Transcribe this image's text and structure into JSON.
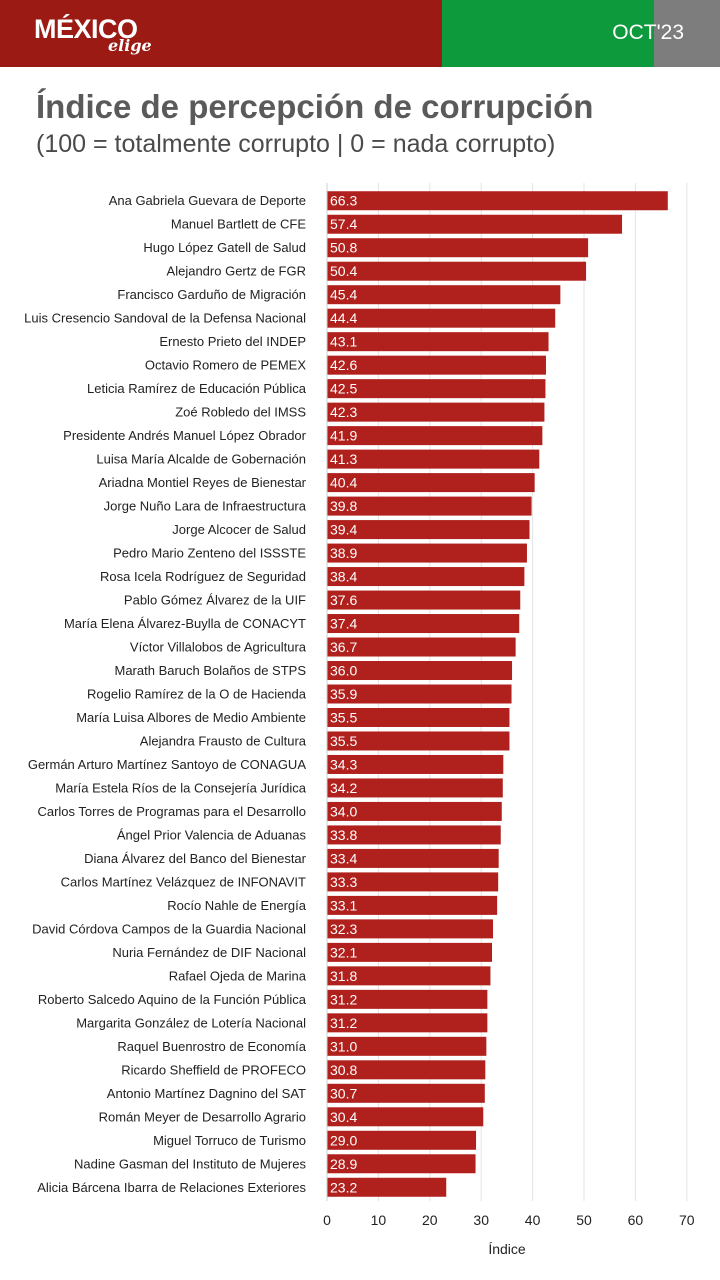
{
  "header": {
    "logo_main": "MÉXICO",
    "logo_sub": "elige",
    "date": "OCT'23",
    "colors": {
      "red": "#9b1a14",
      "green": "#0d9a3c",
      "gray": "#7d7d7d"
    }
  },
  "title": "Índice de percepción de corrupción",
  "subtitle": "(100 = totalmente corrupto | 0 = nada corrupto)",
  "chart_data": {
    "type": "bar",
    "orientation": "horizontal",
    "bar_color": "#b0201c",
    "xlabel": "Índice",
    "xlim": [
      0,
      70
    ],
    "xticks": [
      0,
      10,
      20,
      30,
      40,
      50,
      60,
      70
    ],
    "grid": true,
    "categories": [
      "Ana Gabriela Guevara de Deporte",
      "Manuel Bartlett de CFE",
      "Hugo López Gatell de Salud",
      "Alejandro Gertz de FGR",
      "Francisco Garduño de Migración",
      "Luis Cresencio Sandoval de la Defensa Nacional",
      "Ernesto Prieto del INDEP",
      "Octavio Romero de PEMEX",
      "Leticia Ramírez de Educación Pública",
      "Zoé Robledo del IMSS",
      "Presidente Andrés Manuel López Obrador",
      "Luisa María Alcalde de Gobernación",
      "Ariadna Montiel Reyes de Bienestar",
      "Jorge Nuño Lara de Infraestructura",
      "Jorge Alcocer de Salud",
      "Pedro Mario Zenteno del ISSSTE",
      "Rosa Icela Rodríguez de Seguridad",
      "Pablo Gómez Álvarez de la UIF",
      "María Elena Álvarez-Buylla de CONACYT",
      "Víctor Villalobos de Agricultura",
      "Marath Baruch Bolaños de STPS",
      "Rogelio Ramírez de la O de Hacienda",
      "María Luisa Albores de Medio Ambiente",
      "Alejandra Frausto de Cultura",
      "Germán Arturo Martínez Santoyo de CONAGUA",
      "María Estela Ríos de la Consejería Jurídica",
      "Carlos Torres de Programas para el Desarrollo",
      "Ángel Prior Valencia de Aduanas",
      "Diana Álvarez del Banco del Bienestar",
      "Carlos Martínez Velázquez de INFONAVIT",
      "Rocío Nahle de Energía",
      "David Córdova Campos de la Guardia Nacional",
      "Nuria Fernández de DIF Nacional",
      "Rafael Ojeda de Marina",
      "Roberto Salcedo Aquino de la Función Pública",
      "Margarita González de Lotería Nacional",
      "Raquel Buenrostro de Economía",
      "Ricardo Sheffield de PROFECO",
      "Antonio Martínez Dagnino del SAT",
      "Román Meyer de Desarrollo Agrario",
      "Miguel Torruco de Turismo",
      "Nadine Gasman del Instituto de Mujeres",
      "Alicia Bárcena Ibarra de Relaciones Exteriores"
    ],
    "values": [
      66.3,
      57.4,
      50.8,
      50.4,
      45.4,
      44.4,
      43.1,
      42.6,
      42.5,
      42.3,
      41.9,
      41.3,
      40.4,
      39.8,
      39.4,
      38.9,
      38.4,
      37.6,
      37.4,
      36.7,
      36.0,
      35.9,
      35.5,
      35.5,
      34.3,
      34.2,
      34.0,
      33.8,
      33.4,
      33.3,
      33.1,
      32.3,
      32.1,
      31.8,
      31.2,
      31.2,
      31.0,
      30.8,
      30.7,
      30.4,
      29.0,
      28.9,
      23.2
    ],
    "value_labels": [
      "66.3",
      "57.4",
      "50.8",
      "50.4",
      "45.4",
      "44.4",
      "43.1",
      "42.6",
      "42.5",
      "42.3",
      "41.9",
      "41.3",
      "40.4",
      "39.8",
      "39.4",
      "38.9",
      "38.4",
      "37.6",
      "37.4",
      "36.7",
      "36.0",
      "35.9",
      "35.5",
      "35.5",
      "34.3",
      "34.2",
      "34.0",
      "33.8",
      "33.4",
      "33.3",
      "33.1",
      "32.3",
      "32.1",
      "31.8",
      "31.2",
      "31.2",
      "31.0",
      "30.8",
      "30.7",
      "30.4",
      "29.0",
      "28.9",
      "23.2"
    ]
  }
}
